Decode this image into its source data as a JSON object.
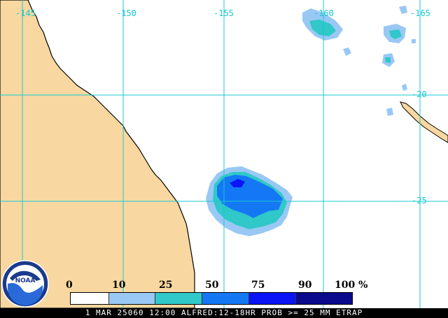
{
  "map": {
    "lon_labels": [
      "-145",
      "-150",
      "-155",
      "-160",
      "-165"
    ],
    "lat_labels": [
      "-20",
      "-25"
    ],
    "colors": {
      "land": "#f8d8a0",
      "ocean": "#ffffff",
      "grid": "#19c8d2",
      "coast": "#000000"
    }
  },
  "legend": {
    "labels": [
      "0",
      "10",
      "25",
      "50",
      "75",
      "90",
      "100 %"
    ],
    "colors": [
      "#ffffff",
      "#99c8f5",
      "#30c8c8",
      "#1478f5",
      "#0a14f5",
      "#0a0a8c"
    ]
  },
  "logo": {
    "text": "NOAA",
    "icon": "noaa-logo-icon"
  },
  "caption": "1 MAR 25060 12:00 ALFRED:12-18HR PROB >= 25 MM ETRAP"
}
